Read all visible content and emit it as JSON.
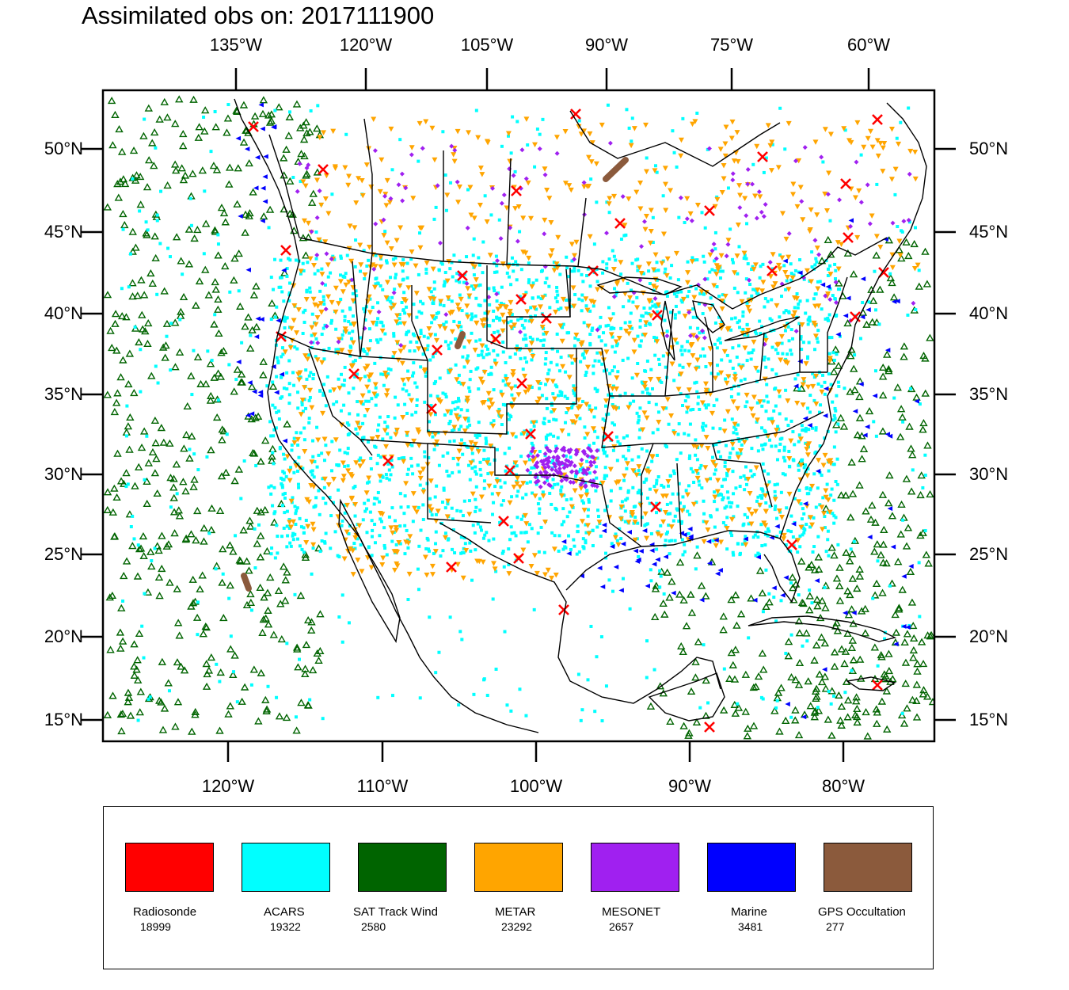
{
  "title": "Assimilated obs on: 2017111900",
  "axes": {
    "top_lon_labels": [
      "135°W",
      "120°W",
      "105°W",
      "90°W",
      "75°W",
      "60°W"
    ],
    "bottom_lon_labels": [
      "120°W",
      "110°W",
      "100°W",
      "90°W",
      "80°W"
    ],
    "left_lat_labels": [
      "50°N",
      "45°N",
      "40°N",
      "35°N",
      "30°N",
      "25°N",
      "20°N",
      "15°N"
    ],
    "right_lat_labels": [
      "50°N",
      "45°N",
      "40°N",
      "35°N",
      "30°N",
      "25°N",
      "20°N",
      "15°N"
    ]
  },
  "legend": [
    {
      "name": "Radiosonde",
      "count": "18999",
      "color": "#ff0000"
    },
    {
      "name": "ACARS",
      "count": "19322",
      "color": "#00ffff"
    },
    {
      "name": "SAT Track Wind",
      "count": "2580",
      "color": "#006400"
    },
    {
      "name": "METAR",
      "count": "23292",
      "color": "#ffa500"
    },
    {
      "name": "MESONET",
      "count": "2657",
      "color": "#a020f0"
    },
    {
      "name": "Marine",
      "count": "3481",
      "color": "#0000ff"
    },
    {
      "name": "GPS Occultation",
      "count": "277",
      "color": "#8b5a3c"
    }
  ],
  "colors": {
    "frame": "#000000",
    "coastline": "#000000",
    "background": "#ffffff"
  }
}
